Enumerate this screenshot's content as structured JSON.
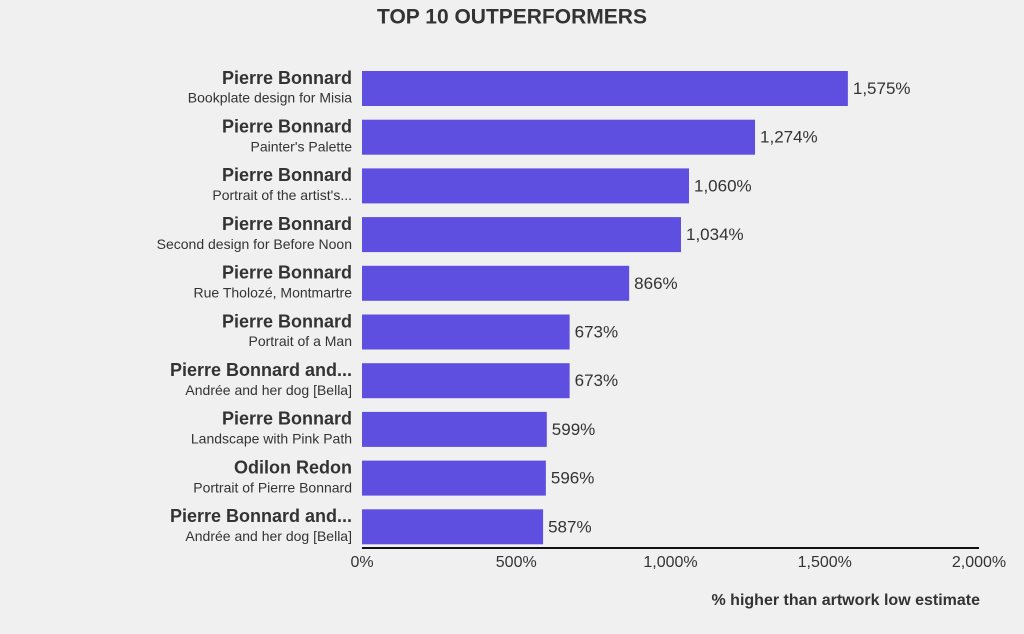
{
  "chart_data": {
    "type": "bar",
    "orientation": "horizontal",
    "title": "TOP 10 OUTPERFORMERS",
    "categories": [
      "Pierre Bonnard",
      "Pierre Bonnard",
      "Pierre Bonnard",
      "Pierre Bonnard",
      "Pierre Bonnard",
      "Pierre Bonnard",
      "Pierre Bonnard and...",
      "Pierre Bonnard",
      "Odilon Redon",
      "Pierre Bonnard and..."
    ],
    "artworks": [
      "Bookplate design for Misia",
      "Painter's Palette",
      "Portrait of the artist's...",
      "Second design for Before Noon",
      "Rue Tholozé, Montmartre",
      "Portrait of a Man",
      "Andrée and her dog [Bella]",
      "Landscape with Pink Path",
      "Portrait of Pierre Bonnard",
      "Andrée and her dog [Bella]"
    ],
    "values": [
      1575,
      1274,
      1060,
      1034,
      866,
      673,
      673,
      599,
      596,
      587
    ],
    "value_labels": [
      "1,575%",
      "1,274%",
      "1,060%",
      "1,034%",
      "866%",
      "673%",
      "673%",
      "599%",
      "596%",
      "587%"
    ],
    "color": "#5f4fe0",
    "xlim": [
      0,
      2000
    ],
    "xticks": [
      {
        "value": 0,
        "label": "0%"
      },
      {
        "value": 500,
        "label": "500%"
      },
      {
        "value": 1000,
        "label": "1,000%"
      },
      {
        "value": 1500,
        "label": "1,500%"
      },
      {
        "value": 2000,
        "label": "2,000%"
      }
    ],
    "xlabel": "% higher than artwork low estimate"
  }
}
